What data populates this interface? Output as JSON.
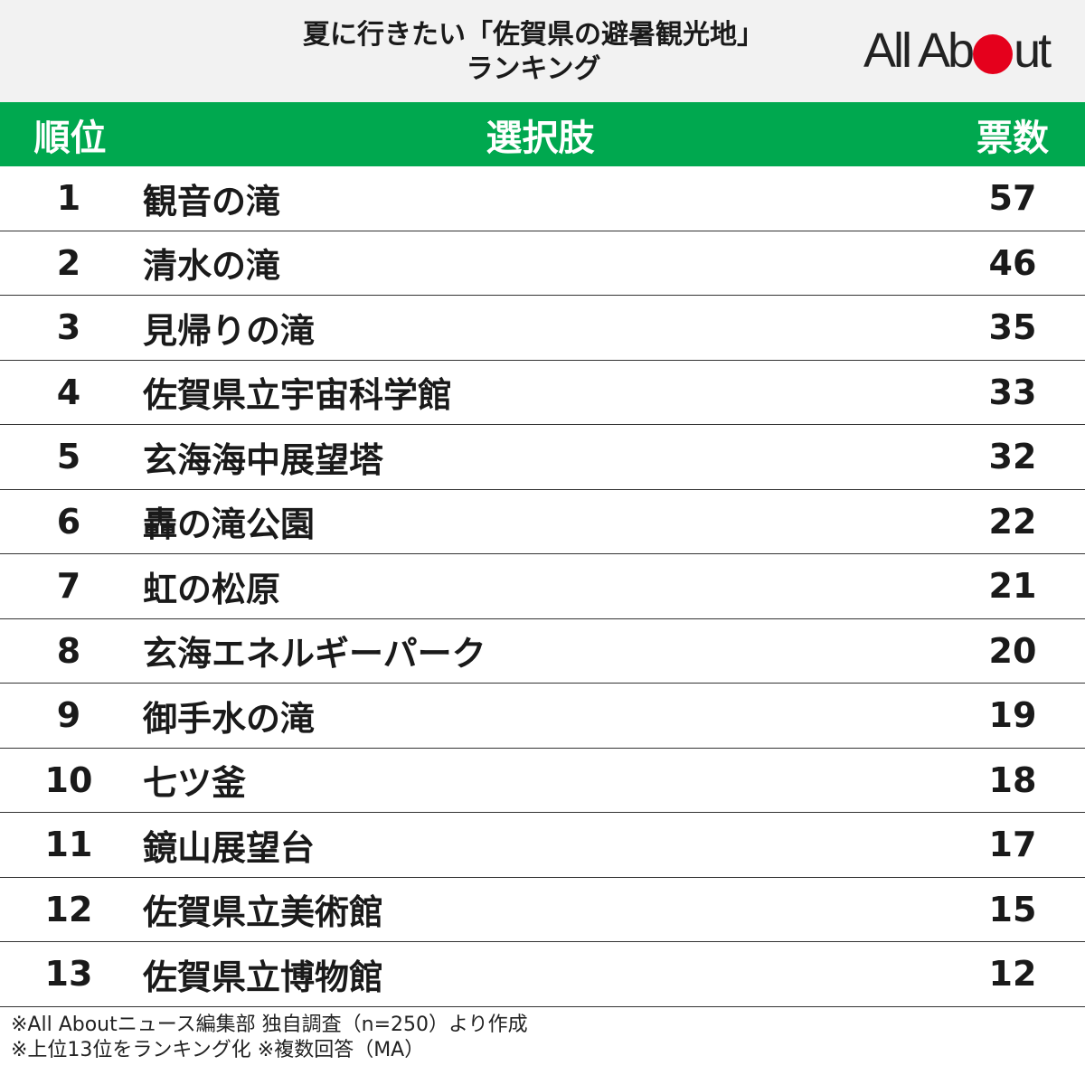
{
  "header": {
    "title_line1": "夏に行きたい「佐賀県の避暑観光地」",
    "title_line2": "ランキング",
    "logo_left": "All Ab",
    "logo_right": "ut"
  },
  "table": {
    "columns": [
      "順位",
      "選択肢",
      "票数"
    ],
    "rows": [
      {
        "rank": "1",
        "name": "観音の滝",
        "votes": "57"
      },
      {
        "rank": "2",
        "name": "清水の滝",
        "votes": "46"
      },
      {
        "rank": "3",
        "name": "見帰りの滝",
        "votes": "35"
      },
      {
        "rank": "4",
        "name": "佐賀県立宇宙科学館",
        "votes": "33"
      },
      {
        "rank": "5",
        "name": "玄海海中展望塔",
        "votes": "32"
      },
      {
        "rank": "6",
        "name": "轟の滝公園",
        "votes": "22"
      },
      {
        "rank": "7",
        "name": "虹の松原",
        "votes": "21"
      },
      {
        "rank": "8",
        "name": "玄海エネルギーパーク",
        "votes": "20"
      },
      {
        "rank": "9",
        "name": "御手水の滝",
        "votes": "19"
      },
      {
        "rank": "10",
        "name": "七ツ釜",
        "votes": "18"
      },
      {
        "rank": "11",
        "name": "鏡山展望台",
        "votes": "17"
      },
      {
        "rank": "12",
        "name": "佐賀県立美術館",
        "votes": "15"
      },
      {
        "rank": "13",
        "name": "佐賀県立博物館",
        "votes": "12"
      }
    ]
  },
  "footnotes": [
    "※All Aboutニュース編集部 独自調査（n=250）より作成",
    "※上位13位をランキング化 ※複数回答（MA）"
  ],
  "colors": {
    "header_green": "#00a84f",
    "header_bg": "#f2f2f2",
    "logo_dot": "#e5001c"
  }
}
